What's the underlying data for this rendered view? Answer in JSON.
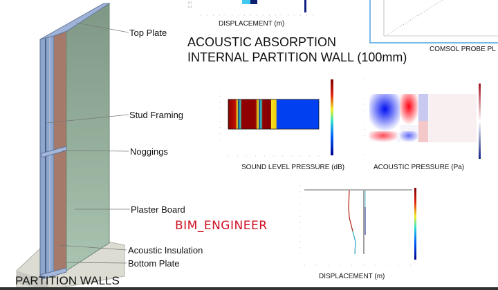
{
  "title": {
    "line1": "ACOUSTIC ABSORPTION",
    "line2": "INTERNAL  PARTITION WALL (100mm)"
  },
  "wall": {
    "caption": "PARTITION WALLS",
    "labels": {
      "top_plate": "Top Plate",
      "stud_framing": "Stud Framing",
      "noggings": "Noggings",
      "plaster_board": "Plaster Board",
      "acoustic_insulation": "Acoustic Insulation",
      "bottom_plate": "Bottom Plate"
    },
    "colors": {
      "plaster": "#8fab98",
      "stud": "#8fa6cc",
      "insulation": "#a67a6a",
      "floor": "#dcdcd2"
    }
  },
  "watermark": {
    "text": "BIM_ENGINEER",
    "color": "#d01020"
  },
  "plots": {
    "top_displacement_caption": "DISPLACEMENT  (m)",
    "comsol_caption": "COMSOL PROBE PL",
    "sound_level_caption": "SOUND LEVEL PRESSURE  (dB)",
    "acoustic_pressure_caption": "ACOUSTIC PRESSURE  (Pa)",
    "bottom_displacement_caption": "DISPLACEMENT  (m)"
  },
  "colors": {
    "comsol_border": "#4aa3df",
    "accent_red": "#d01020"
  }
}
